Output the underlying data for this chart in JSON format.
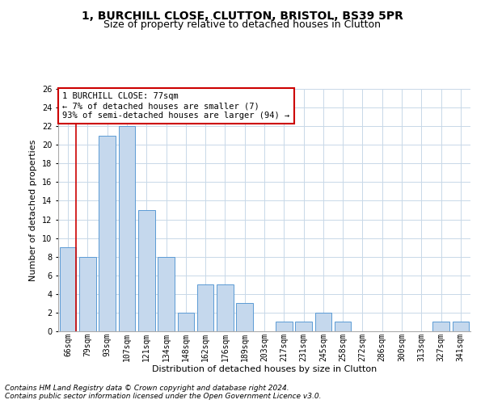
{
  "title": "1, BURCHILL CLOSE, CLUTTON, BRISTOL, BS39 5PR",
  "subtitle": "Size of property relative to detached houses in Clutton",
  "xlabel": "Distribution of detached houses by size in Clutton",
  "ylabel": "Number of detached properties",
  "categories": [
    "66sqm",
    "79sqm",
    "93sqm",
    "107sqm",
    "121sqm",
    "134sqm",
    "148sqm",
    "162sqm",
    "176sqm",
    "189sqm",
    "203sqm",
    "217sqm",
    "231sqm",
    "245sqm",
    "258sqm",
    "272sqm",
    "286sqm",
    "300sqm",
    "313sqm",
    "327sqm",
    "341sqm"
  ],
  "values": [
    9,
    8,
    21,
    22,
    13,
    8,
    2,
    5,
    5,
    3,
    0,
    1,
    1,
    2,
    1,
    0,
    0,
    0,
    0,
    1,
    1
  ],
  "bar_color": "#c5d8ed",
  "bar_edge_color": "#5b9bd5",
  "highlight_line_color": "#cc0000",
  "annotation_box_text": "1 BURCHILL CLOSE: 77sqm\n← 7% of detached houses are smaller (7)\n93% of semi-detached houses are larger (94) →",
  "annotation_box_color": "#cc0000",
  "ylim": [
    0,
    26
  ],
  "yticks": [
    0,
    2,
    4,
    6,
    8,
    10,
    12,
    14,
    16,
    18,
    20,
    22,
    24,
    26
  ],
  "footer_line1": "Contains HM Land Registry data © Crown copyright and database right 2024.",
  "footer_line2": "Contains public sector information licensed under the Open Government Licence v3.0.",
  "background_color": "#ffffff",
  "grid_color": "#c8d8e8",
  "title_fontsize": 10,
  "subtitle_fontsize": 9,
  "axis_label_fontsize": 8,
  "tick_fontsize": 7,
  "annotation_fontsize": 7.5,
  "footer_fontsize": 6.5
}
